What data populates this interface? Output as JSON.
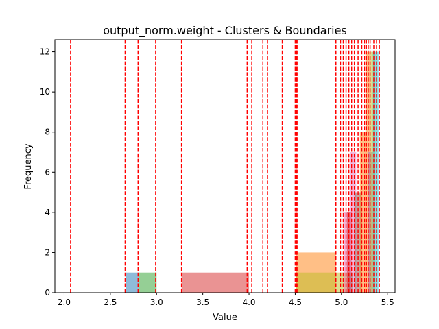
{
  "chart_data": {
    "type": "bar",
    "title": "output_norm.weight - Clusters & Boundaries",
    "xlabel": "Value",
    "ylabel": "Frequency",
    "xlim": [
      1.9,
      5.58
    ],
    "ylim": [
      0,
      12.6
    ],
    "grid": false,
    "xticks": [
      2.0,
      2.5,
      3.0,
      3.5,
      4.0,
      4.5,
      5.0,
      5.5
    ],
    "xtick_labels": [
      "2.0",
      "2.5",
      "3.0",
      "3.5",
      "4.0",
      "4.5",
      "5.0",
      "5.5"
    ],
    "yticks": [
      0,
      2,
      4,
      6,
      8,
      10,
      12
    ],
    "ytick_labels": [
      "0",
      "2",
      "4",
      "6",
      "8",
      "10",
      "12"
    ],
    "histogram_bars": [
      {
        "x0": 2.67,
        "x1": 2.81,
        "count": 1,
        "color": "#1f77b4"
      },
      {
        "x0": 2.81,
        "x1": 3.0,
        "count": 1,
        "color": "#2ca02c"
      },
      {
        "x0": 3.27,
        "x1": 4.0,
        "count": 1,
        "color": "#d62728"
      },
      {
        "x0": 4.51,
        "x1": 4.94,
        "count": 2,
        "color": "#ff7f0e"
      },
      {
        "x0": 4.51,
        "x1": 4.94,
        "count": 1,
        "color": "#bcbd22"
      },
      {
        "x0": 4.94,
        "x1": 5.07,
        "count": 1,
        "color": "#bcbd22"
      },
      {
        "x0": 5.07,
        "x1": 5.12,
        "count": 1,
        "color": "#2ca02c"
      },
      {
        "x0": 5.03,
        "x1": 5.09,
        "count": 4,
        "color": "#e377c2"
      },
      {
        "x0": 5.06,
        "x1": 5.11,
        "count": 4,
        "color": "#d62728"
      },
      {
        "x0": 5.09,
        "x1": 5.16,
        "count": 7,
        "color": "#e377c2"
      },
      {
        "x0": 5.14,
        "x1": 5.22,
        "count": 5,
        "color": "#8c564b"
      },
      {
        "x0": 5.2,
        "x1": 5.27,
        "count": 8,
        "color": "#ff7f0e"
      },
      {
        "x0": 5.26,
        "x1": 5.31,
        "count": 12,
        "color": "#ff7f0e"
      },
      {
        "x0": 5.29,
        "x1": 5.34,
        "count": 7,
        "color": "#9467bd"
      },
      {
        "x0": 5.31,
        "x1": 5.36,
        "count": 12,
        "color": "#bcbd22"
      },
      {
        "x0": 5.34,
        "x1": 5.4,
        "count": 12,
        "color": "#17becf"
      }
    ],
    "boundaries": [
      2.07,
      2.66,
      2.8,
      2.99,
      3.27,
      3.98,
      4.03,
      4.15,
      4.2,
      4.36,
      4.5,
      4.51,
      4.515,
      4.52,
      4.94,
      4.99,
      5.02,
      5.05,
      5.08,
      5.11,
      5.14,
      5.18,
      5.22,
      5.25,
      5.27,
      5.29,
      5.31,
      5.35,
      5.38,
      5.41
    ],
    "boundary_color": "#ff0000",
    "bar_alpha": 0.5
  }
}
